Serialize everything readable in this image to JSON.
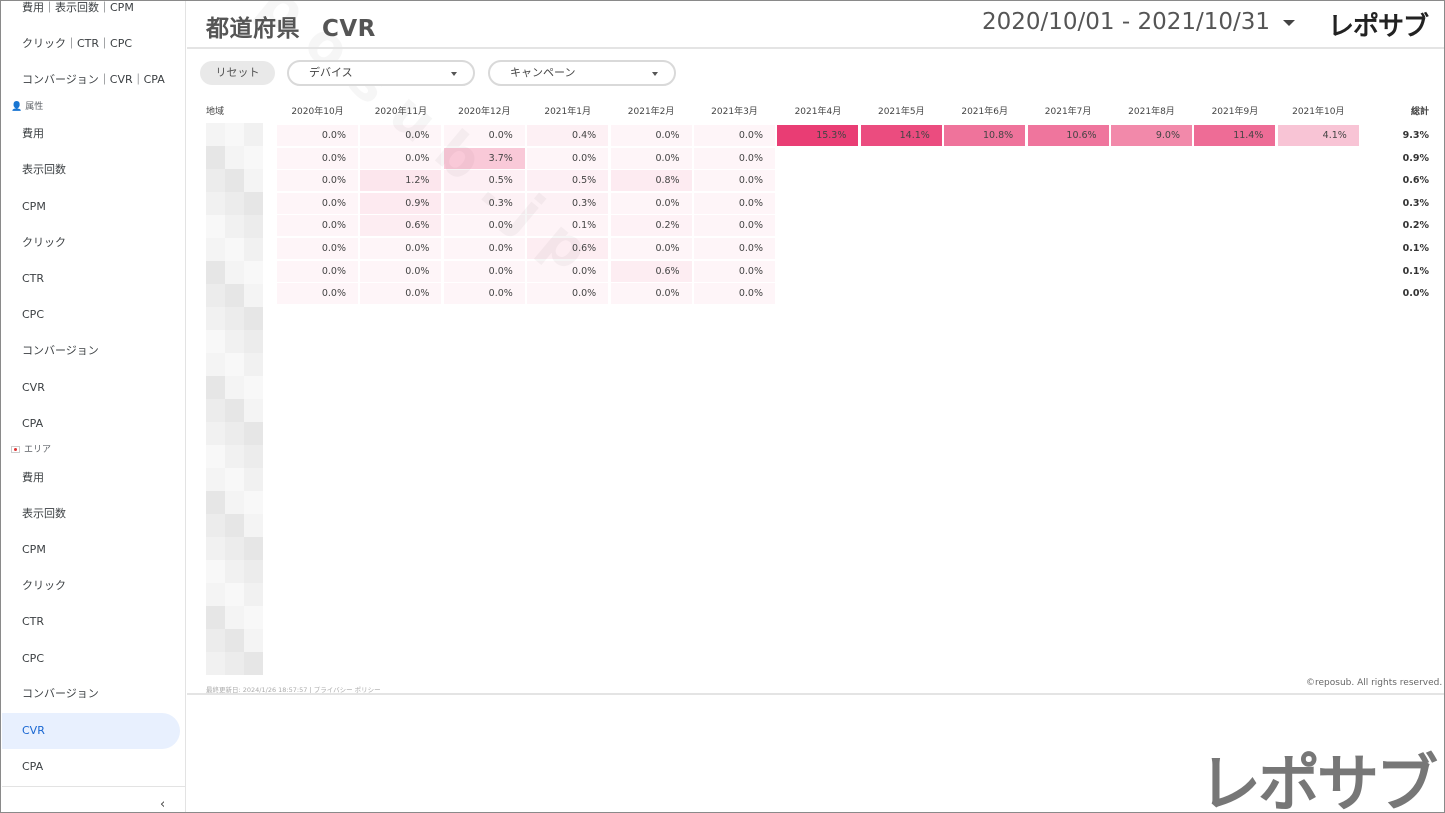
{
  "sidebar": {
    "items": [
      {
        "label": "費用｜表示回数｜CPM",
        "top": 0
      },
      {
        "label": "クリック｜CTR｜CPC",
        "top": 25
      },
      {
        "label": "コンバージョン｜CVR｜CPA",
        "top": 61
      }
    ],
    "section_attr": "属性",
    "attr_items": [
      "費用",
      "表示回数",
      "CPM",
      "クリック",
      "CTR",
      "CPC",
      "コンバージョン",
      "CVR",
      "CPA"
    ],
    "section_area": "エリア",
    "area_items": [
      "費用",
      "表示回数",
      "CPM",
      "クリック",
      "CTR",
      "CPC",
      "コンバージョン",
      "CVR",
      "CPA"
    ],
    "active_item": "CVR",
    "collapse_icon": "chevron-left-icon"
  },
  "header": {
    "title": "都道府県",
    "metric": "CVR",
    "date_range": "2020/10/01 - 2021/10/31",
    "logo": "レポサブ"
  },
  "filters": {
    "reset": "リセット",
    "device": "デバイス",
    "campaign": "キャンペーン"
  },
  "table": {
    "region_header": "地域",
    "total_header": "総計",
    "months": [
      "2020年10月",
      "2020年11月",
      "2020年12月",
      "2021年1月",
      "2021年2月",
      "2021年3月",
      "2021年4月",
      "2021年5月",
      "2021年6月",
      "2021年7月",
      "2021年8月",
      "2021年9月",
      "2021年10月"
    ],
    "rows": [
      {
        "values": [
          "0.0%",
          "0.0%",
          "0.0%",
          "0.4%",
          "0.0%",
          "0.0%",
          "15.3%",
          "14.1%",
          "10.8%",
          "10.6%",
          "9.0%",
          "11.4%",
          "4.1%"
        ],
        "total": "9.3%"
      },
      {
        "values": [
          "0.0%",
          "0.0%",
          "3.7%",
          "0.0%",
          "0.0%",
          "0.0%",
          "",
          "",
          "",
          "",
          "",
          "",
          ""
        ],
        "total": "0.9%"
      },
      {
        "values": [
          "0.0%",
          "1.2%",
          "0.5%",
          "0.5%",
          "0.8%",
          "0.0%",
          "",
          "",
          "",
          "",
          "",
          "",
          ""
        ],
        "total": "0.6%"
      },
      {
        "values": [
          "0.0%",
          "0.9%",
          "0.3%",
          "0.3%",
          "0.0%",
          "0.0%",
          "",
          "",
          "",
          "",
          "",
          "",
          ""
        ],
        "total": "0.3%"
      },
      {
        "values": [
          "0.0%",
          "0.6%",
          "0.0%",
          "0.1%",
          "0.2%",
          "0.0%",
          "",
          "",
          "",
          "",
          "",
          "",
          ""
        ],
        "total": "0.2%"
      },
      {
        "values": [
          "0.0%",
          "0.0%",
          "0.0%",
          "0.6%",
          "0.0%",
          "0.0%",
          "",
          "",
          "",
          "",
          "",
          "",
          ""
        ],
        "total": "0.1%"
      },
      {
        "values": [
          "0.0%",
          "0.0%",
          "0.0%",
          "0.0%",
          "0.6%",
          "0.0%",
          "",
          "",
          "",
          "",
          "",
          "",
          ""
        ],
        "total": "0.1%"
      },
      {
        "values": [
          "0.0%",
          "0.0%",
          "0.0%",
          "0.0%",
          "0.0%",
          "0.0%",
          "",
          "",
          "",
          "",
          "",
          "",
          ""
        ],
        "total": "0.0%"
      }
    ],
    "heat_color": "#e8336d"
  },
  "footer": {
    "updated": "最終更新日: 2024/1/26 18:57:57",
    "separator": "|",
    "privacy": "プライバシー ポリシー",
    "copyright": "©reposub. All rights reserved.",
    "big_logo": "レポサブ"
  }
}
